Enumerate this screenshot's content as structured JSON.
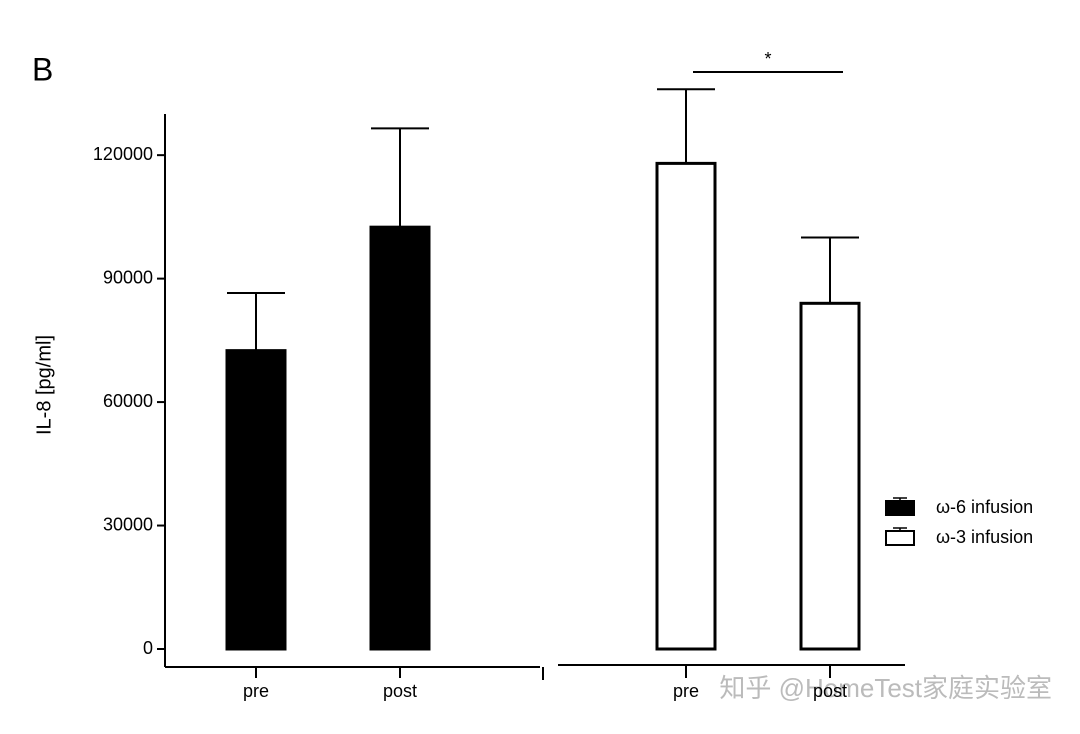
{
  "chart_data": {
    "type": "bar",
    "panel_label": "B",
    "y_label": "IL-8 [pg/ml]",
    "categories": [
      "pre",
      "post",
      "pre",
      "post"
    ],
    "series": [
      {
        "name": "ω-6 infusion",
        "color": "#000000",
        "values": [
          72500,
          102500,
          null,
          null
        ],
        "errors": [
          14000,
          24000,
          null,
          null
        ]
      },
      {
        "name": "ω-3 infusion",
        "color": "#ffffff",
        "values": [
          null,
          null,
          118000,
          84000
        ],
        "errors": [
          null,
          null,
          18000,
          16000
        ]
      }
    ],
    "ylim": [
      0,
      130000
    ],
    "yticks": [
      0,
      30000,
      60000,
      90000,
      120000
    ],
    "significance": "*",
    "legend": "right",
    "watermark": "知乎 @HomeTest家庭实验室"
  }
}
